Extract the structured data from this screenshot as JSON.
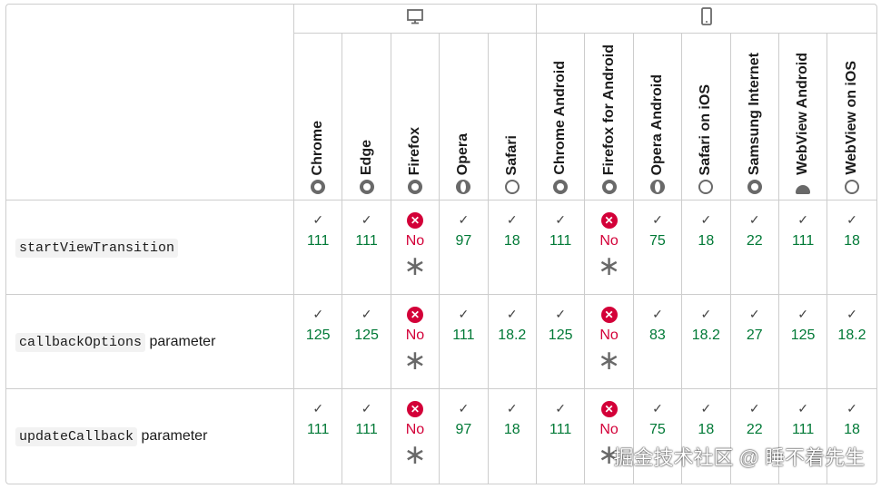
{
  "platforms": [
    {
      "icon": "desktop-icon"
    },
    {
      "icon": "mobile-icon"
    }
  ],
  "browsers": [
    {
      "name": "Chrome",
      "icon": "ring"
    },
    {
      "name": "Edge",
      "icon": "ring"
    },
    {
      "name": "Firefox",
      "icon": "ring"
    },
    {
      "name": "Opera",
      "icon": "opera"
    },
    {
      "name": "Safari",
      "icon": "safari"
    },
    {
      "name": "Chrome Android",
      "icon": "ring"
    },
    {
      "name": "Firefox for Android",
      "icon": "ring"
    },
    {
      "name": "Opera Android",
      "icon": "opera"
    },
    {
      "name": "Safari on iOS",
      "icon": "safari"
    },
    {
      "name": "Samsung Internet",
      "icon": "ring"
    },
    {
      "name": "WebView Android",
      "icon": "android"
    },
    {
      "name": "WebView on iOS",
      "icon": "safari"
    }
  ],
  "rows": [
    {
      "code": "startViewTransition",
      "suffix": "",
      "values": [
        "111",
        "111",
        "No",
        "97",
        "18",
        "111",
        "No",
        "75",
        "18",
        "22",
        "111",
        "18"
      ]
    },
    {
      "code": "callbackOptions",
      "suffix": "parameter",
      "values": [
        "125",
        "125",
        "No",
        "111",
        "18.2",
        "125",
        "No",
        "83",
        "18.2",
        "27",
        "125",
        "18.2"
      ]
    },
    {
      "code": "updateCallback",
      "suffix": "parameter",
      "values": [
        "111",
        "111",
        "No",
        "97",
        "18",
        "111",
        "No",
        "75",
        "18",
        "22",
        "111",
        "18"
      ]
    }
  ],
  "colors": {
    "supported": "#007936",
    "unsupported": "#d30038"
  },
  "watermark": "掘金技术社区 @ 睡不着先生"
}
